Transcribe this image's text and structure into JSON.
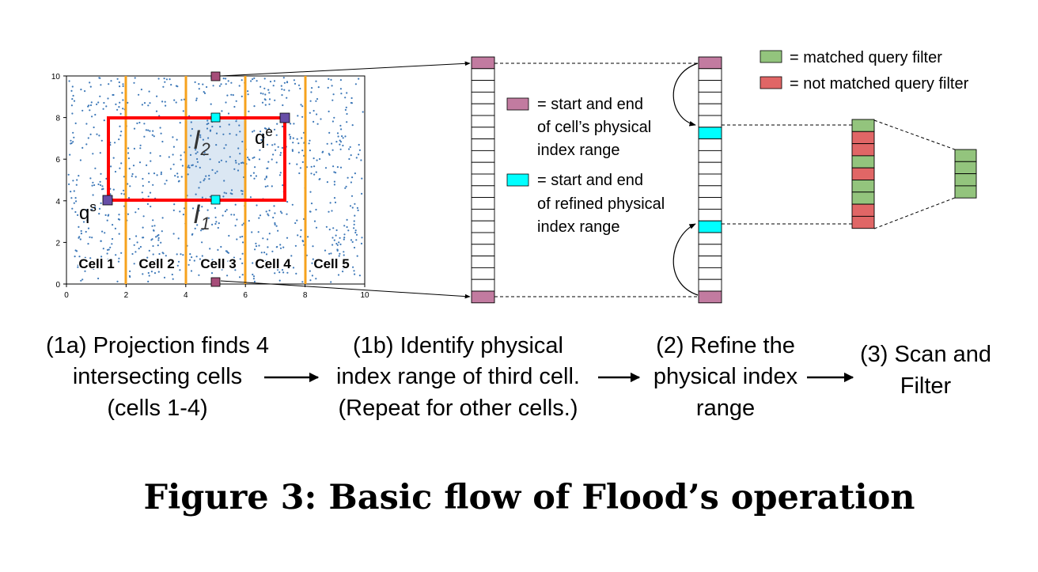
{
  "colors": {
    "matched": "#93c47d",
    "not_matched": "#e06666",
    "purple": "#c27ba0",
    "cyan": "#00ffff",
    "qpoint": "#674ea7",
    "query_red": "#ff0000",
    "cell_orange": "#f6a21d",
    "dots": "#3d78b8",
    "highlight": "#dbe7f3"
  },
  "legend": {
    "matched": "= matched query filter",
    "not_matched": "= not matched query filter",
    "range_1": [
      "= start and end",
      "of cell’s physical",
      "index range"
    ],
    "range_2": [
      "= start and end",
      "of refined physical",
      "index range"
    ]
  },
  "plot": {
    "x_ticks": [
      "0",
      "2",
      "4",
      "6",
      "8",
      "10"
    ],
    "y_ticks": [
      "0",
      "2",
      "4",
      "6",
      "8",
      "10"
    ],
    "cells": [
      "Cell 1",
      "Cell 2",
      "Cell 3",
      "Cell 4",
      "Cell 5"
    ],
    "q_start": "q",
    "q_start_sup": "s",
    "q_end": "q",
    "q_end_sup": "e",
    "i1": "I",
    "i1_sub": "1",
    "i2": "I",
    "i2_sub": "2"
  },
  "scan_cells": [
    "matched",
    "not_matched",
    "not_matched",
    "matched",
    "not_matched",
    "matched",
    "matched",
    "not_matched",
    "not_matched"
  ],
  "filtered_count": 4,
  "steps": {
    "s1a": [
      "(1a) Projection finds 4",
      "intersecting cells",
      "(cells 1-4)"
    ],
    "s1b": [
      "(1b) Identify physical",
      "index range of third cell.",
      "(Repeat for other cells.)"
    ],
    "s2": [
      "(2) Refine the",
      "physical index",
      "range"
    ],
    "s3": [
      "(3) Scan and",
      "Filter"
    ]
  },
  "caption": "Figure 3: Basic flow of Flood’s operation"
}
